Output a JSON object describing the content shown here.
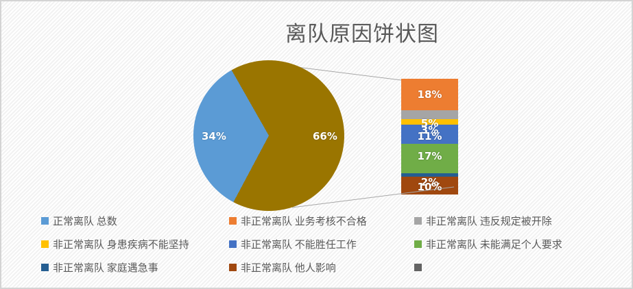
{
  "title": "离队原因饼状图",
  "chart_data": {
    "type": "pie",
    "subtype": "pie-of-pie-with-breakdown-bar",
    "title": "离队原因饼状图",
    "legend_position": "bottom",
    "pie_slices": [
      {
        "label": "34%",
        "value": 34,
        "color": "#5B9BD5",
        "legend_label": "正常离队 总数"
      },
      {
        "label": "66%",
        "value": 66,
        "color": "#9A7500",
        "legend_label": ""
      }
    ],
    "bar_segments": [
      {
        "label": "18%",
        "value": 18,
        "color": "#ED7D31",
        "legend_label": "非正常离队 业务考核不合格"
      },
      {
        "label": "5%",
        "value": 5,
        "color": "#A5A5A5",
        "legend_label": "非正常离队 违反规定被开除"
      },
      {
        "label": "3%",
        "value": 3,
        "color": "#FFC000",
        "legend_label": "非正常离队 身患疾病不能坚持"
      },
      {
        "label": "11%",
        "value": 11,
        "color": "#4472C4",
        "legend_label": "非正常离队 不能胜任工作"
      },
      {
        "label": "17%",
        "value": 17,
        "color": "#70AD47",
        "legend_label": "非正常离队 未能满足个人要求"
      },
      {
        "label": "2%",
        "value": 2,
        "color": "#255E91",
        "legend_label": "非正常离队 家庭遇急事"
      },
      {
        "label": "10%",
        "value": 10,
        "color": "#A0480F",
        "legend_label": "非正常离队 他人影响"
      }
    ],
    "legend": [
      {
        "label": "正常离队 总数",
        "color": "#5B9BD5"
      },
      {
        "label": "非正常离队 业务考核不合格",
        "color": "#ED7D31"
      },
      {
        "label": "非正常离队 违反规定被开除",
        "color": "#A5A5A5"
      },
      {
        "label": "非正常离队 身患疾病不能坚持",
        "color": "#FFC000"
      },
      {
        "label": "非正常离队 不能胜任工作",
        "color": "#4472C4"
      },
      {
        "label": "非正常离队 未能满足个人要求",
        "color": "#70AD47"
      },
      {
        "label": "非正常离队 家庭遇急事",
        "color": "#255E91"
      },
      {
        "label": "非正常离队 他人影响",
        "color": "#A0480F"
      },
      {
        "label": "",
        "color": "#636363"
      }
    ],
    "colors": {
      "title_text": "#595959",
      "legend_text": "#595959",
      "connector_line": "#A6A6A6",
      "data_label_text": "#FFFFFF"
    }
  }
}
